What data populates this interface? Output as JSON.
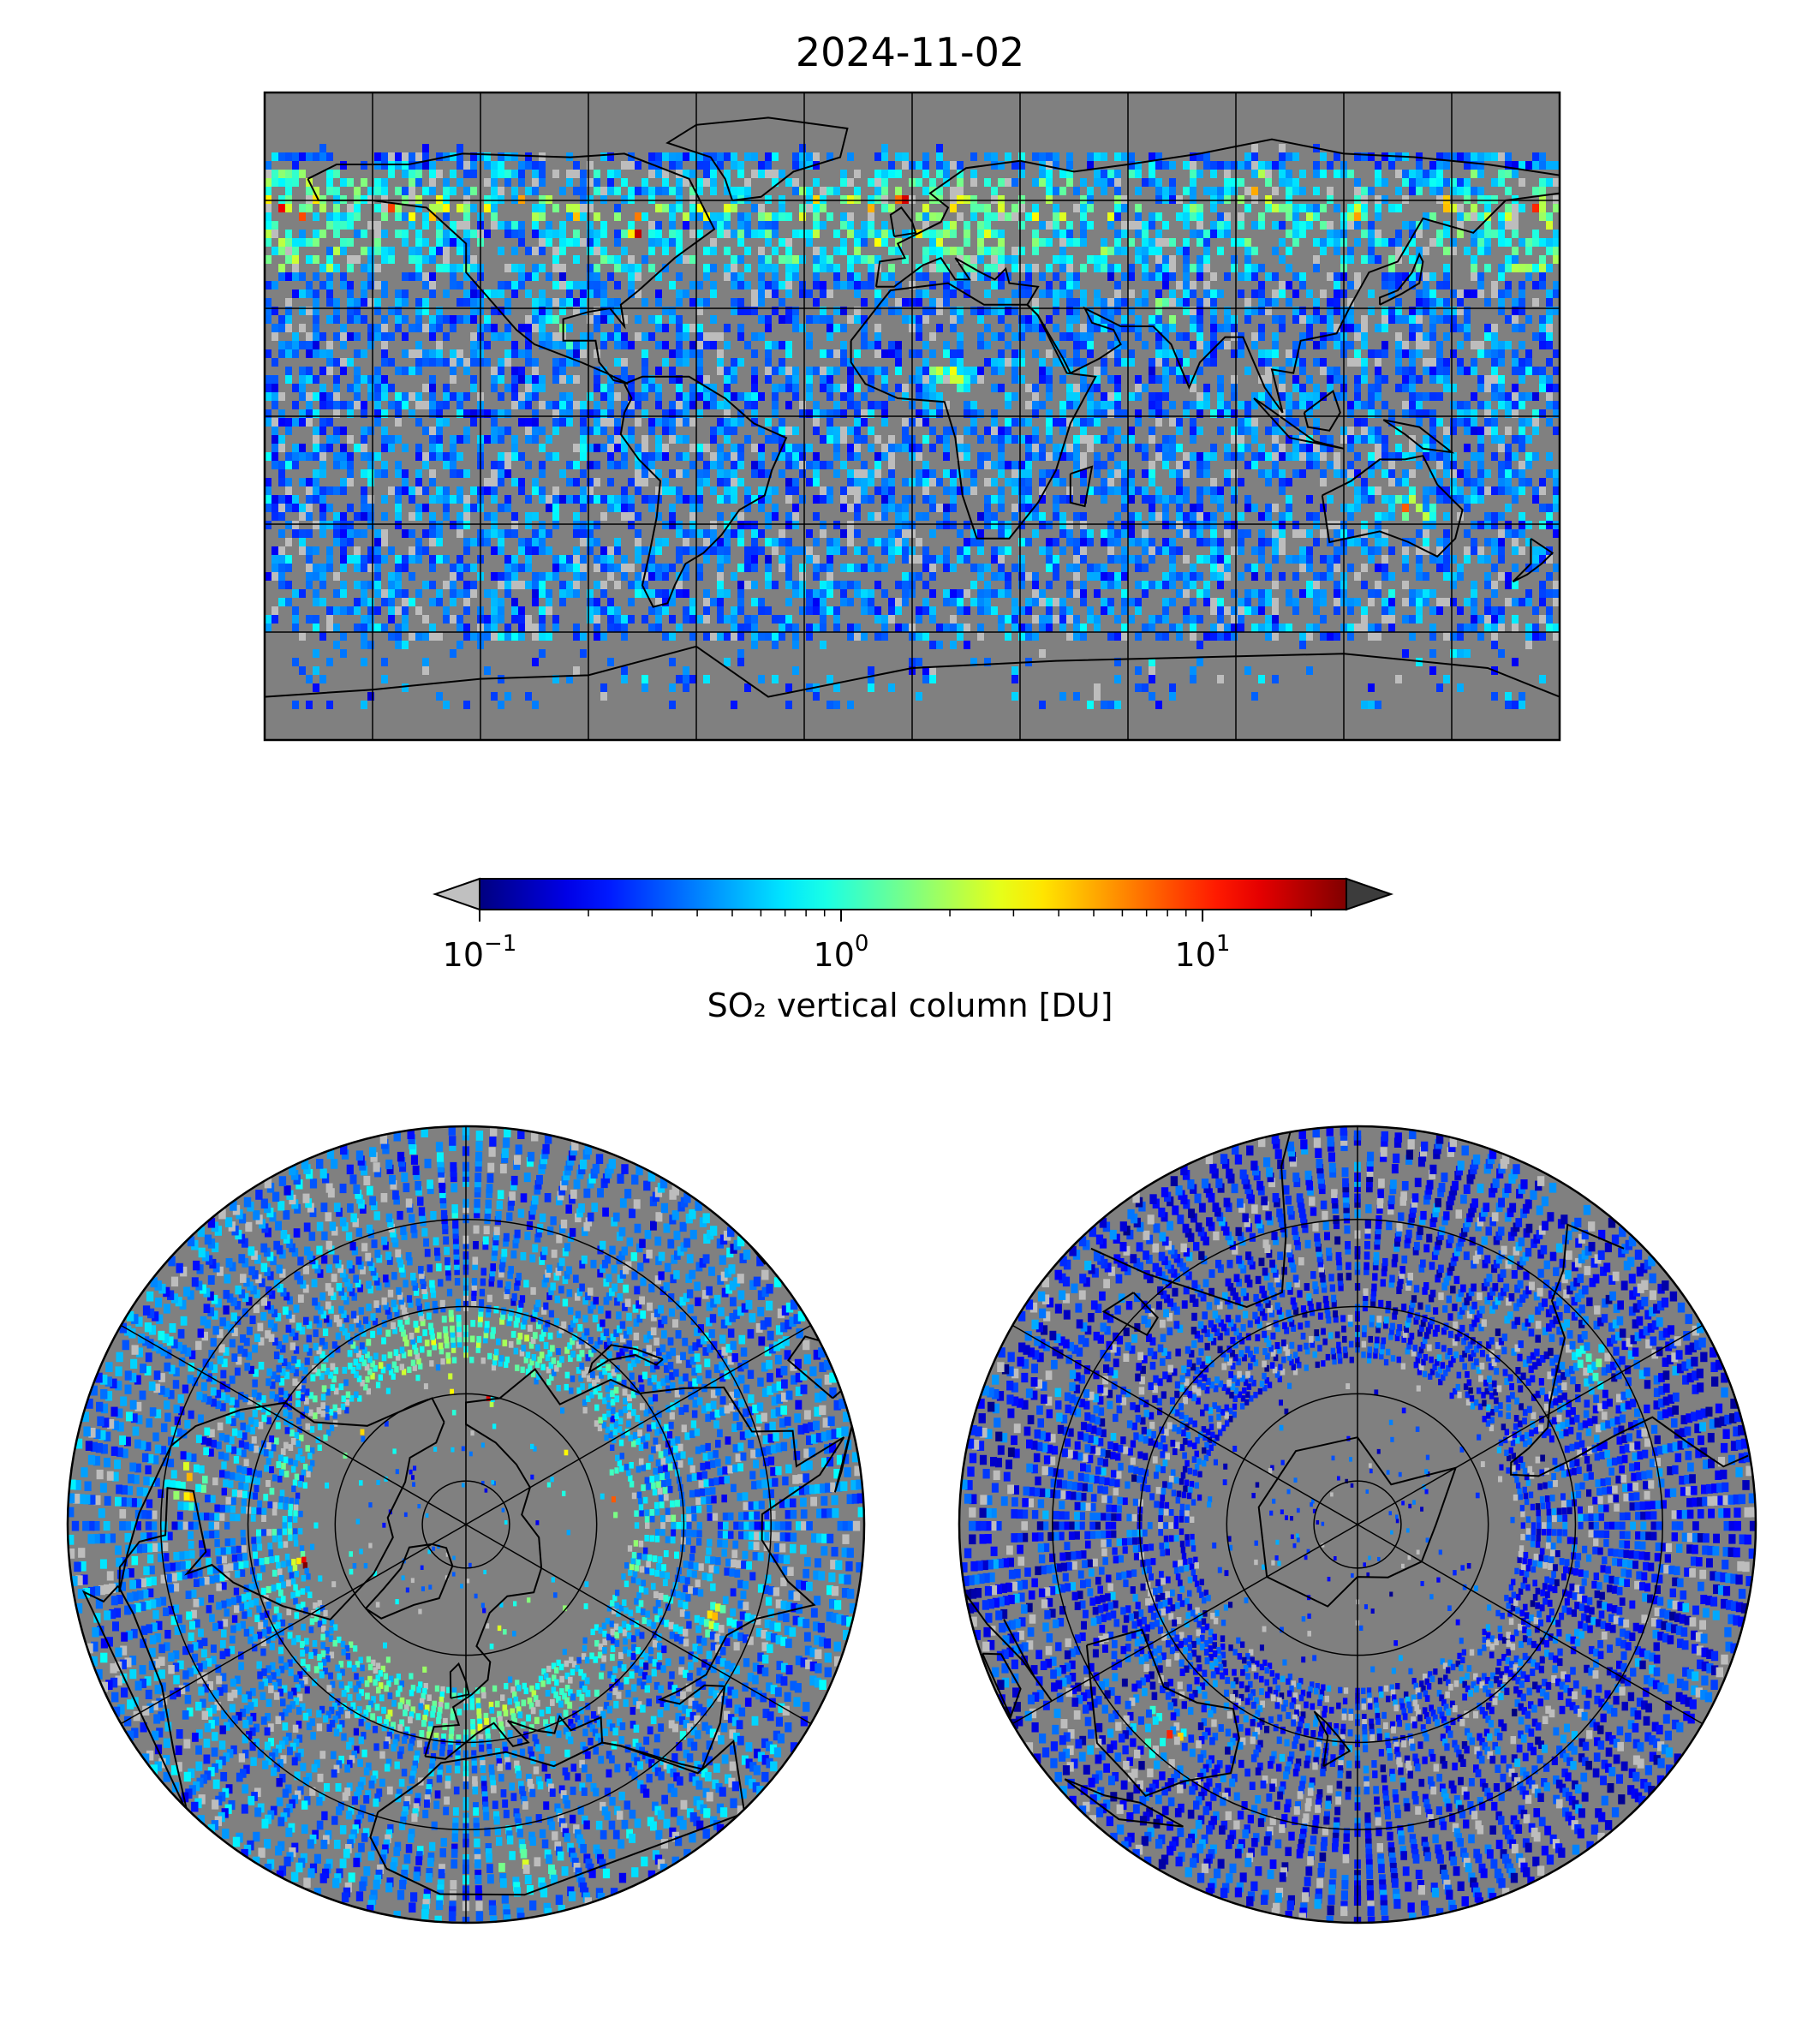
{
  "title": "2024-11-02",
  "colorbar": {
    "label": "SO₂ vertical column [DU]",
    "scale": "log",
    "range": [
      0.1,
      25
    ],
    "extend": "both",
    "colormap": "jet",
    "under_color": "#c0c0c0",
    "over_color": "#3c3c3c",
    "ticks": [
      {
        "base": "10",
        "exp": "−1",
        "value": 0.1
      },
      {
        "base": "10",
        "exp": "0",
        "value": 1
      },
      {
        "base": "10",
        "exp": "1",
        "value": 10
      }
    ]
  },
  "maps": [
    {
      "name": "Global map (Plate Carrée)",
      "projection": "equirectangular",
      "lon_range": [
        -180,
        180
      ],
      "lat_range": [
        -90,
        90
      ],
      "graticule_lon_step": 30,
      "graticule_lat_step": 30
    },
    {
      "name": "North Polar Stereographic",
      "projection": "north-polar",
      "graticule_lat": [
        80,
        60,
        40,
        20
      ],
      "graticule_lon_step": 60
    },
    {
      "name": "South Polar Stereographic",
      "projection": "south-polar",
      "graticule_lat": [
        -80,
        -60,
        -40,
        -20
      ],
      "graticule_lon_step": 60
    }
  ],
  "colors": {
    "missing": "#808080",
    "land_outline": "#000000",
    "hotspot": "#ff3010"
  },
  "field_description": "Noisy daily SO2 column field, mostly 0.1–1 DU (blue) with enhanced streaks (yellow/red) at northern mid-latitudes, Central America, Africa, South Asia and eastern Australia"
}
